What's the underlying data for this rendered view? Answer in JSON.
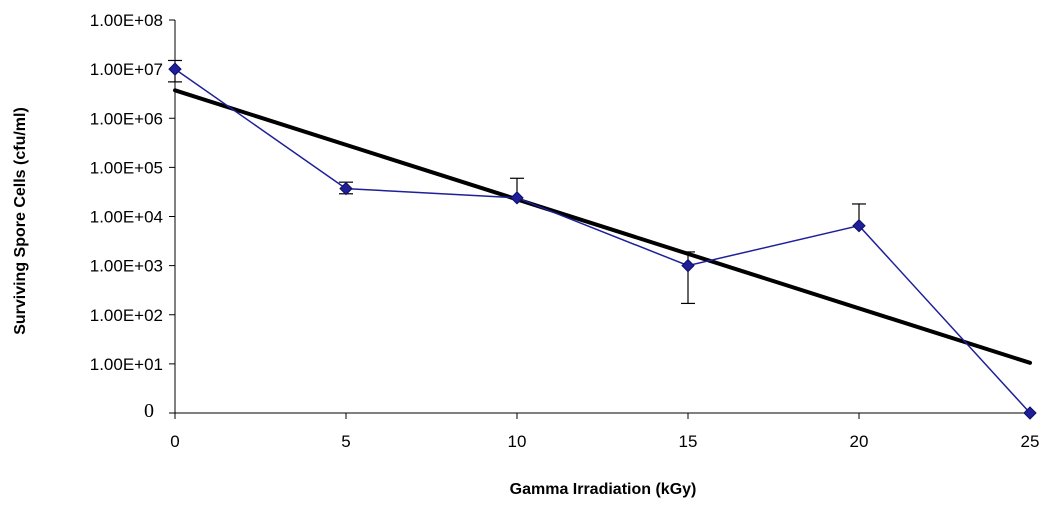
{
  "chart_data": {
    "type": "line",
    "title": "",
    "xlabel": "Gamma Irradiation (kGy)",
    "ylabel": "Surviving Spore Cells (cfu/ml)",
    "x_scale": "linear",
    "y_scale": "log",
    "xlim": [
      0,
      25
    ],
    "ylim": [
      1,
      100000000
    ],
    "grid": false,
    "legend": "none",
    "x_ticks": [
      {
        "value": 0,
        "label": "0"
      },
      {
        "value": 5,
        "label": "5"
      },
      {
        "value": 10,
        "label": "10"
      },
      {
        "value": 15,
        "label": "15"
      },
      {
        "value": 20,
        "label": "20"
      },
      {
        "value": 25,
        "label": "25"
      }
    ],
    "y_ticks": [
      {
        "value": 1,
        "label": "0",
        "serif": true
      },
      {
        "value": 10,
        "label": "1.00E+01"
      },
      {
        "value": 100,
        "label": "1.00E+02"
      },
      {
        "value": 1000,
        "label": "1.00E+03"
      },
      {
        "value": 10000,
        "label": "1.00E+04"
      },
      {
        "value": 100000,
        "label": "1.00E+05"
      },
      {
        "value": 1000000,
        "label": "1.00E+06"
      },
      {
        "value": 10000000,
        "label": "1.00E+07"
      },
      {
        "value": 100000000,
        "label": "1.00E+08"
      }
    ],
    "series": [
      {
        "style": "line-with-diamond-markers",
        "color": "#1f1f99",
        "x": [
          0,
          5,
          10,
          15,
          20,
          25
        ],
        "y": [
          10000000,
          37000,
          24000,
          1000,
          6500,
          1
        ],
        "error_upper": [
          15000000,
          50000,
          60000,
          1900,
          18000,
          null
        ],
        "error_lower": [
          5500000,
          29000,
          null,
          170,
          null,
          null
        ]
      },
      {
        "style": "trendline",
        "color": "#000000",
        "fit": "exponential",
        "x": [
          0,
          25
        ],
        "y": [
          3700000,
          10.5
        ]
      }
    ]
  }
}
